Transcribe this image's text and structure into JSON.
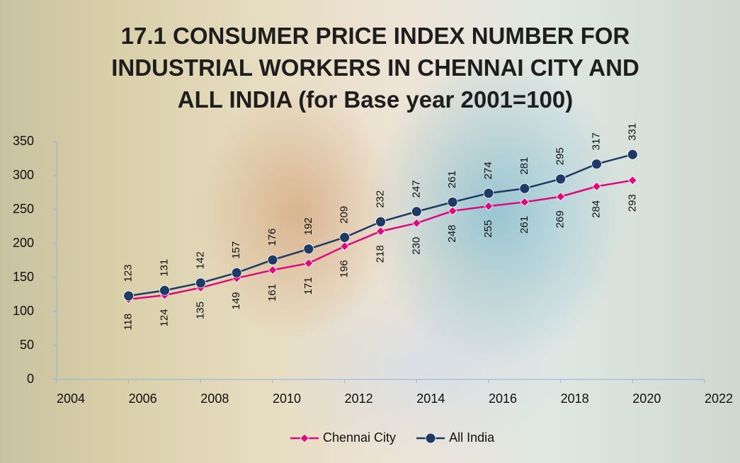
{
  "chart_data": {
    "type": "line",
    "title": "17.1 CONSUMER PRICE INDEX NUMBER FOR INDUSTRIAL WORKERS IN CHENNAI CITY AND ALL INDIA (for Base year 2001=100)",
    "x": [
      2006,
      2007,
      2008,
      2009,
      2010,
      2011,
      2012,
      2013,
      2014,
      2015,
      2016,
      2017,
      2018,
      2019,
      2020
    ],
    "series": [
      {
        "name": "Chennai City",
        "color": "#e0087e",
        "marker": "diamond",
        "label_position": "below",
        "values": [
          118,
          124,
          135,
          149,
          161,
          171,
          196,
          218,
          230,
          248,
          255,
          261,
          269,
          284,
          293
        ]
      },
      {
        "name": "All India",
        "color": "#1f3a66",
        "marker": "circle",
        "label_position": "above",
        "values": [
          123,
          131,
          142,
          157,
          176,
          192,
          209,
          232,
          247,
          261,
          274,
          281,
          295,
          317,
          331
        ]
      }
    ],
    "xlim": [
      2004,
      2022
    ],
    "xticks": [
      2004,
      2006,
      2008,
      2010,
      2012,
      2014,
      2016,
      2018,
      2020,
      2022
    ],
    "ylim": [
      0,
      350
    ],
    "yticks": [
      0,
      50,
      100,
      150,
      200,
      250,
      300,
      350
    ],
    "legend": "bottom"
  }
}
